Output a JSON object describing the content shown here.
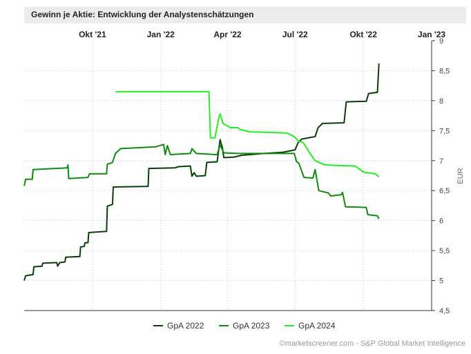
{
  "chart_data": {
    "type": "line",
    "title": "Gewinn je Aktie: Entwicklung der Analystenschätzungen",
    "ylabel": "EUR",
    "xlabel": "",
    "ylim": [
      4.5,
      9
    ],
    "x_ticks": [
      "Okt '21",
      "Jan '22",
      "Apr '22",
      "Jul '22",
      "Okt '22",
      "Jan '23"
    ],
    "y_ticks": [
      "9",
      "8,5",
      "8",
      "7,5",
      "7",
      "6,5",
      "6",
      "5,5",
      "5",
      "4,5"
    ],
    "grid": "dotted",
    "legend_position": "bottom",
    "series": [
      {
        "name": "GpA 2022",
        "color": "#0a3d0a",
        "points": [
          [
            "2021-07-01",
            5.0
          ],
          [
            "2021-07-03",
            5.08
          ],
          [
            "2021-07-13",
            5.1
          ],
          [
            "2021-07-14",
            5.23
          ],
          [
            "2021-07-25",
            5.24
          ],
          [
            "2021-07-26",
            5.29
          ],
          [
            "2021-08-14",
            5.3
          ],
          [
            "2021-08-15",
            5.24
          ],
          [
            "2021-08-18",
            5.3
          ],
          [
            "2021-08-25",
            5.31
          ],
          [
            "2021-08-26",
            5.39
          ],
          [
            "2021-09-14",
            5.4
          ],
          [
            "2021-09-15",
            5.56
          ],
          [
            "2021-09-20",
            5.57
          ],
          [
            "2021-09-21",
            5.63
          ],
          [
            "2021-09-25",
            5.63
          ],
          [
            "2021-09-26",
            5.8
          ],
          [
            "2021-10-20",
            5.82
          ],
          [
            "2021-10-21",
            6.24
          ],
          [
            "2021-10-28",
            6.27
          ],
          [
            "2021-10-29",
            6.56
          ],
          [
            "2021-12-15",
            6.57
          ],
          [
            "2021-12-16",
            6.87
          ],
          [
            "2022-01-20",
            6.88
          ],
          [
            "2022-01-25",
            6.9
          ],
          [
            "2022-02-10",
            6.91
          ],
          [
            "2022-02-12",
            6.74
          ],
          [
            "2022-02-15",
            6.8
          ],
          [
            "2022-02-18",
            6.74
          ],
          [
            "2022-03-02",
            6.75
          ],
          [
            "2022-03-04",
            6.97
          ],
          [
            "2022-03-18",
            6.98
          ],
          [
            "2022-03-22",
            7.35
          ],
          [
            "2022-03-25",
            7.22
          ],
          [
            "2022-03-27",
            7.05
          ],
          [
            "2022-04-10",
            7.06
          ],
          [
            "2022-04-20",
            7.09
          ],
          [
            "2022-05-01",
            7.1
          ],
          [
            "2022-05-20",
            7.12
          ],
          [
            "2022-06-15",
            7.14
          ],
          [
            "2022-07-01",
            7.18
          ],
          [
            "2022-07-05",
            7.3
          ],
          [
            "2022-07-10",
            7.36
          ],
          [
            "2022-07-28",
            7.4
          ],
          [
            "2022-08-01",
            7.55
          ],
          [
            "2022-08-07",
            7.62
          ],
          [
            "2022-09-05",
            7.63
          ],
          [
            "2022-09-08",
            7.98
          ],
          [
            "2022-10-05",
            7.99
          ],
          [
            "2022-10-08",
            8.12
          ],
          [
            "2022-10-20",
            8.14
          ],
          [
            "2022-10-22",
            8.62
          ]
        ]
      },
      {
        "name": "GpA 2023",
        "color": "#0f8a0f",
        "points": [
          [
            "2021-07-01",
            6.58
          ],
          [
            "2021-07-03",
            6.69
          ],
          [
            "2021-07-12",
            6.69
          ],
          [
            "2021-07-13",
            6.85
          ],
          [
            "2021-08-28",
            6.88
          ],
          [
            "2021-08-29",
            6.93
          ],
          [
            "2021-08-30",
            6.7
          ],
          [
            "2021-09-25",
            6.72
          ],
          [
            "2021-09-27",
            6.78
          ],
          [
            "2021-10-20",
            6.78
          ],
          [
            "2021-10-21",
            6.94
          ],
          [
            "2021-10-28",
            6.97
          ],
          [
            "2021-11-01",
            7.12
          ],
          [
            "2021-11-08",
            7.2
          ],
          [
            "2021-12-25",
            7.23
          ],
          [
            "2022-01-05",
            7.27
          ],
          [
            "2022-01-07",
            7.1
          ],
          [
            "2022-01-10",
            7.25
          ],
          [
            "2022-01-14",
            7.1
          ],
          [
            "2022-02-10",
            7.12
          ],
          [
            "2022-02-12",
            7.2
          ],
          [
            "2022-02-18",
            7.12
          ],
          [
            "2022-03-18",
            7.1
          ],
          [
            "2022-03-22",
            7.26
          ],
          [
            "2022-03-27",
            7.13
          ],
          [
            "2022-04-15",
            7.12
          ],
          [
            "2022-05-20",
            7.12
          ],
          [
            "2022-06-30",
            7.12
          ],
          [
            "2022-07-03",
            6.98
          ],
          [
            "2022-07-06",
            6.96
          ],
          [
            "2022-07-13",
            6.72
          ],
          [
            "2022-07-25",
            6.71
          ],
          [
            "2022-07-28",
            6.85
          ],
          [
            "2022-08-02",
            6.5
          ],
          [
            "2022-08-15",
            6.46
          ],
          [
            "2022-08-18",
            6.41
          ],
          [
            "2022-09-01",
            6.43
          ],
          [
            "2022-09-03",
            6.47
          ],
          [
            "2022-09-07",
            6.23
          ],
          [
            "2022-10-05",
            6.22
          ],
          [
            "2022-10-07",
            6.1
          ],
          [
            "2022-10-20",
            6.08
          ],
          [
            "2022-10-22",
            6.03
          ]
        ]
      },
      {
        "name": "GpA 2024",
        "color": "#22ee22",
        "points": [
          [
            "2021-11-01",
            8.15
          ],
          [
            "2022-03-07",
            8.15
          ],
          [
            "2022-03-09",
            7.38
          ],
          [
            "2022-03-15",
            7.38
          ],
          [
            "2022-03-20",
            7.7
          ],
          [
            "2022-03-22",
            7.78
          ],
          [
            "2022-03-26",
            7.62
          ],
          [
            "2022-04-05",
            7.55
          ],
          [
            "2022-04-15",
            7.55
          ],
          [
            "2022-04-18",
            7.52
          ],
          [
            "2022-05-01",
            7.48
          ],
          [
            "2022-06-01",
            7.47
          ],
          [
            "2022-06-20",
            7.46
          ],
          [
            "2022-06-30",
            7.4
          ],
          [
            "2022-07-05",
            7.33
          ],
          [
            "2022-07-12",
            7.3
          ],
          [
            "2022-07-20",
            7.14
          ],
          [
            "2022-07-28",
            7.0
          ],
          [
            "2022-08-10",
            6.93
          ],
          [
            "2022-08-25",
            6.92
          ],
          [
            "2022-09-20",
            6.91
          ],
          [
            "2022-10-01",
            6.81
          ],
          [
            "2022-10-17",
            6.78
          ],
          [
            "2022-10-20",
            6.75
          ],
          [
            "2022-10-22",
            6.73
          ]
        ]
      }
    ]
  },
  "footer": {
    "credit": "©marketscreener.com - S&P Global Market Intelligence"
  }
}
